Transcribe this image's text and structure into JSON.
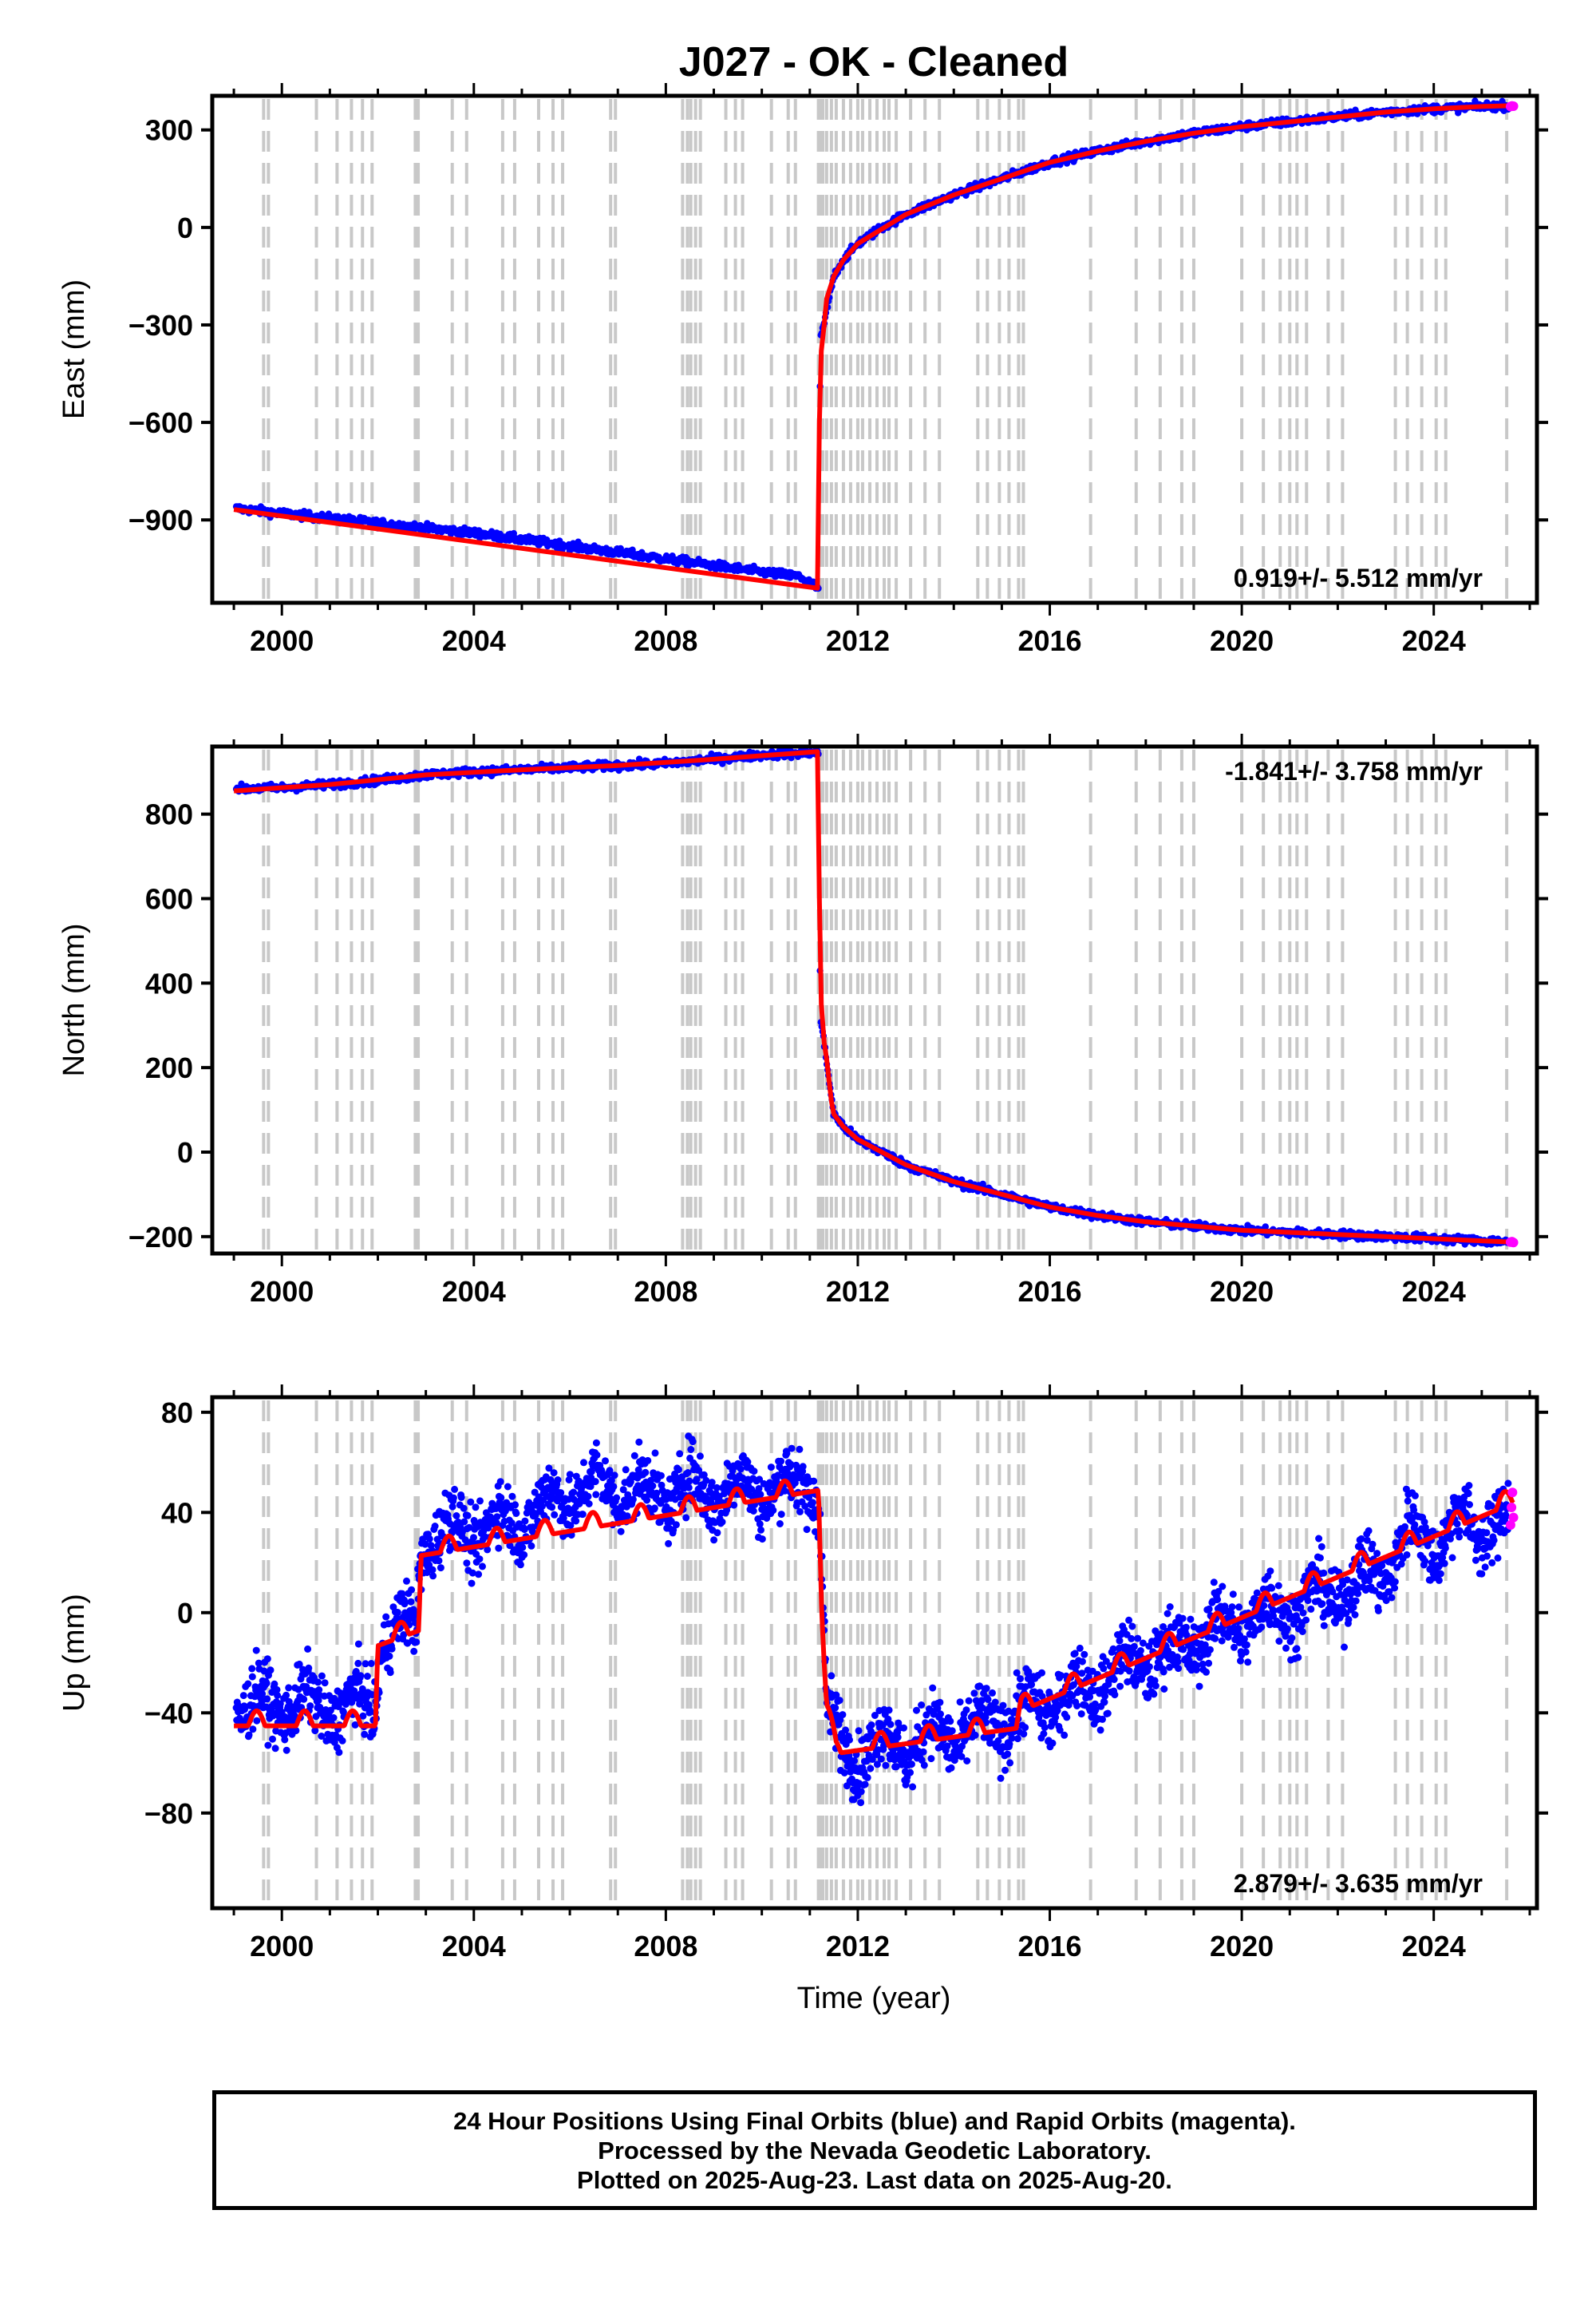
{
  "title": "J027  - OK - Cleaned",
  "xlabel": "Time (year)",
  "x_ticks": [
    "2000",
    "2004",
    "2008",
    "2012",
    "2016",
    "2020",
    "2024"
  ],
  "footer": {
    "line1": "24 Hour Positions Using Final Orbits (blue) and Rapid Orbits (magenta).",
    "line2": "Processed by the Nevada Geodetic Laboratory.",
    "line3": "Plotted on 2025-Aug-23. Last data on 2025-Aug-20."
  },
  "colors": {
    "final_orbits": "#0000ff",
    "rapid_orbits": "#ff00ff",
    "model": "#ff0000",
    "event_lines": "#c8c8c8"
  },
  "chart_data": [
    {
      "type": "scatter",
      "ylabel": "East (mm)",
      "xlim": [
        1998.55,
        2026.15
      ],
      "ylim": [
        -1155,
        405
      ],
      "yticks": [
        300,
        0,
        -300,
        -600,
        -900
      ],
      "ytick_labels": [
        "300",
        "0",
        "−300",
        "−600",
        "−900"
      ],
      "rate_label": "0.919+/- 5.512 mm/yr",
      "rate_position": "bottom-right",
      "grid": false,
      "series": [
        {
          "name": "Final Orbits",
          "color": "#0000ff",
          "x": [
            1999.05,
            2000.0,
            2001.0,
            2002.0,
            2003.0,
            2004.0,
            2005.0,
            2006.0,
            2007.0,
            2008.0,
            2009.0,
            2010.0,
            2010.8,
            2011.18,
            2011.22,
            2011.5,
            2011.7,
            2012.0,
            2012.5,
            2013.0,
            2013.5,
            2014.0,
            2015.0,
            2016.0,
            2017.0,
            2018.0,
            2019.0,
            2020.0,
            2021.0,
            2022.0,
            2023.0,
            2024.0,
            2025.0,
            2025.55
          ],
          "y": [
            -865,
            -880,
            -895,
            -910,
            -925,
            -940,
            -960,
            -980,
            -1000,
            -1020,
            -1040,
            -1060,
            -1075,
            -1110,
            -350,
            -150,
            -100,
            -50,
            0,
            40,
            70,
            100,
            150,
            200,
            235,
            265,
            290,
            310,
            325,
            340,
            355,
            365,
            372,
            375
          ]
        },
        {
          "name": "Rapid Orbits",
          "color": "#ff00ff",
          "x": [
            2025.6,
            2025.63,
            2025.66
          ],
          "y": [
            372,
            374,
            373
          ]
        },
        {
          "name": "Model",
          "color": "#ff0000",
          "x": [
            1999.0,
            2011.16,
            2011.2,
            2011.24,
            2011.3,
            2011.35,
            2011.5,
            2011.7,
            2012.0,
            2013.0,
            2014.0,
            2015.0,
            2016.0,
            2017.0,
            2018.0,
            2019.0,
            2020.0,
            2021.0,
            2022.0,
            2023.0,
            2024.0,
            2025.0,
            2025.66
          ],
          "y": [
            -868,
            -1110,
            -600,
            -380,
            -300,
            -220,
            -150,
            -100,
            -50,
            40,
            100,
            150,
            200,
            235,
            265,
            290,
            310,
            325,
            340,
            355,
            365,
            372,
            375
          ]
        }
      ]
    },
    {
      "type": "scatter",
      "ylabel": "North (mm)",
      "xlim": [
        1998.55,
        2026.15
      ],
      "ylim": [
        -240,
        960
      ],
      "yticks": [
        800,
        600,
        400,
        200,
        0,
        -200
      ],
      "ytick_labels": [
        "800",
        "600",
        "400",
        "200",
        "0",
        "−200"
      ],
      "rate_label": "-1.841+/- 3.758 mm/yr",
      "rate_position": "top-right",
      "grid": false,
      "series": [
        {
          "name": "Final Orbits",
          "color": "#0000ff",
          "x": [
            1999.05,
            2000.0,
            2001.0,
            2002.0,
            2003.0,
            2004.0,
            2005.0,
            2006.0,
            2007.0,
            2008.0,
            2009.0,
            2010.0,
            2011.0,
            2011.18,
            2011.22,
            2011.5,
            2011.7,
            2012.0,
            2012.5,
            2013.0,
            2014.0,
            2015.0,
            2016.0,
            2017.0,
            2018.0,
            2019.0,
            2020.0,
            2021.0,
            2022.0,
            2023.0,
            2024.0,
            2025.0,
            2025.55
          ],
          "y": [
            860,
            862,
            870,
            880,
            893,
            900,
            905,
            910,
            915,
            920,
            930,
            940,
            945,
            945,
            320,
            90,
            60,
            30,
            0,
            -30,
            -70,
            -100,
            -130,
            -150,
            -165,
            -175,
            -185,
            -190,
            -195,
            -200,
            -205,
            -210,
            -212
          ]
        },
        {
          "name": "Rapid Orbits",
          "color": "#ff00ff",
          "x": [
            2025.6,
            2025.63,
            2025.66
          ],
          "y": [
            -213,
            -212,
            -214
          ]
        },
        {
          "name": "Model",
          "color": "#ff0000",
          "x": [
            1999.0,
            2001.0,
            2003.0,
            2005.0,
            2007.0,
            2009.0,
            2011.16,
            2011.2,
            2011.24,
            2011.3,
            2011.35,
            2011.45,
            2011.5,
            2011.7,
            2012.0,
            2013.0,
            2014.0,
            2015.0,
            2016.0,
            2017.0,
            2018.0,
            2019.0,
            2020.0,
            2021.0,
            2022.0,
            2023.0,
            2024.0,
            2025.0,
            2025.66
          ],
          "y": [
            855,
            870,
            893,
            905,
            915,
            930,
            948,
            600,
            350,
            260,
            220,
            120,
            90,
            60,
            30,
            -30,
            -70,
            -100,
            -130,
            -150,
            -165,
            -175,
            -185,
            -190,
            -195,
            -200,
            -205,
            -210,
            -213
          ]
        }
      ]
    },
    {
      "type": "scatter",
      "ylabel": "Up (mm)",
      "xlim": [
        1998.55,
        2026.15
      ],
      "ylim": [
        -118,
        86
      ],
      "yticks": [
        80,
        40,
        0,
        -40,
        -80
      ],
      "ytick_labels": [
        "80",
        "40",
        "0",
        "−40",
        "−80"
      ],
      "rate_label": "2.879+/- 3.635 mm/yr",
      "rate_position": "bottom-right",
      "grid": false,
      "series": [
        {
          "name": "Final Orbits",
          "color": "#0000ff",
          "x": [
            1999.05,
            1999.5,
            2000.0,
            2000.5,
            2001.0,
            2001.5,
            2001.95,
            2002.05,
            2002.5,
            2002.8,
            2002.9,
            2003.5,
            2004.0,
            2004.5,
            2005.0,
            2005.5,
            2006.0,
            2006.5,
            2007.0,
            2007.5,
            2008.0,
            2008.5,
            2009.0,
            2009.5,
            2010.0,
            2010.5,
            2011.0,
            2011.2,
            2011.35,
            2011.7,
            2012.0,
            2012.5,
            2013.0,
            2013.5,
            2014.0,
            2014.5,
            2015.0,
            2015.5,
            2016.0,
            2016.5,
            2017.0,
            2017.5,
            2018.0,
            2018.5,
            2019.0,
            2019.5,
            2020.0,
            2020.5,
            2021.0,
            2021.5,
            2022.0,
            2022.5,
            2023.0,
            2023.5,
            2024.0,
            2024.5,
            2025.0,
            2025.55
          ],
          "y": [
            -40,
            -35,
            -38,
            -35,
            -40,
            -35,
            -38,
            -12,
            -5,
            -5,
            25,
            35,
            30,
            38,
            35,
            45,
            45,
            52,
            48,
            50,
            45,
            52,
            46,
            52,
            47,
            52,
            49,
            48,
            -38,
            -55,
            -58,
            -50,
            -55,
            -48,
            -50,
            -45,
            -45,
            -38,
            -38,
            -30,
            -30,
            -20,
            -20,
            -15,
            -12,
            -5,
            -5,
            2,
            0,
            8,
            5,
            15,
            15,
            35,
            25,
            38,
            32,
            38
          ]
        },
        {
          "name": "Rapid Orbits",
          "color": "#ff00ff",
          "x": [
            2025.6,
            2025.62,
            2025.64,
            2025.66
          ],
          "y": [
            35,
            42,
            48,
            38
          ]
        },
        {
          "name": "Model",
          "color": "#ff0000",
          "x": [
            1999.0,
            2001.95,
            2002.0,
            2002.85,
            2002.9,
            2011.18,
            2011.25,
            2011.35,
            2011.55,
            2015.3,
            2015.4,
            2025.66
          ],
          "y": [
            -44,
            -44,
            -12,
            -6,
            24,
            50,
            0,
            -38,
            -55,
            -45,
            -38,
            45
          ],
          "annual_amplitude": 6
        }
      ]
    }
  ]
}
